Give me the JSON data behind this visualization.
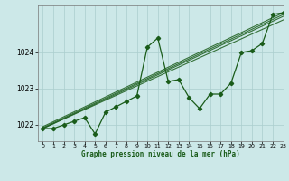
{
  "title": "Graphe pression niveau de la mer (hPa)",
  "bg_color": "#cce8e8",
  "grid_color": "#aacece",
  "line_color": "#1a5c1a",
  "xlim": [
    -0.5,
    23
  ],
  "ylim": [
    1021.55,
    1025.3
  ],
  "yticks": [
    1022,
    1023,
    1024
  ],
  "xticks": [
    0,
    1,
    2,
    3,
    4,
    5,
    6,
    7,
    8,
    9,
    10,
    11,
    12,
    13,
    14,
    15,
    16,
    17,
    18,
    19,
    20,
    21,
    22,
    23
  ],
  "main_data": [
    1021.9,
    1021.9,
    1022.0,
    1022.1,
    1022.2,
    1021.75,
    1022.35,
    1022.5,
    1022.65,
    1022.8,
    1024.15,
    1024.4,
    1023.2,
    1023.25,
    1022.75,
    1022.45,
    1022.85,
    1022.85,
    1023.15,
    1024.0,
    1024.05,
    1024.25,
    1025.05,
    1025.1
  ],
  "trend_lines": [
    {
      "x0": 0,
      "y0": 1021.9,
      "x1": 23,
      "y1": 1024.9
    },
    {
      "x0": 0,
      "y0": 1021.9,
      "x1": 23,
      "y1": 1025.0
    },
    {
      "x0": 0,
      "y0": 1021.92,
      "x1": 23,
      "y1": 1025.05
    },
    {
      "x0": 0,
      "y0": 1021.95,
      "x1": 23,
      "y1": 1025.1
    }
  ]
}
